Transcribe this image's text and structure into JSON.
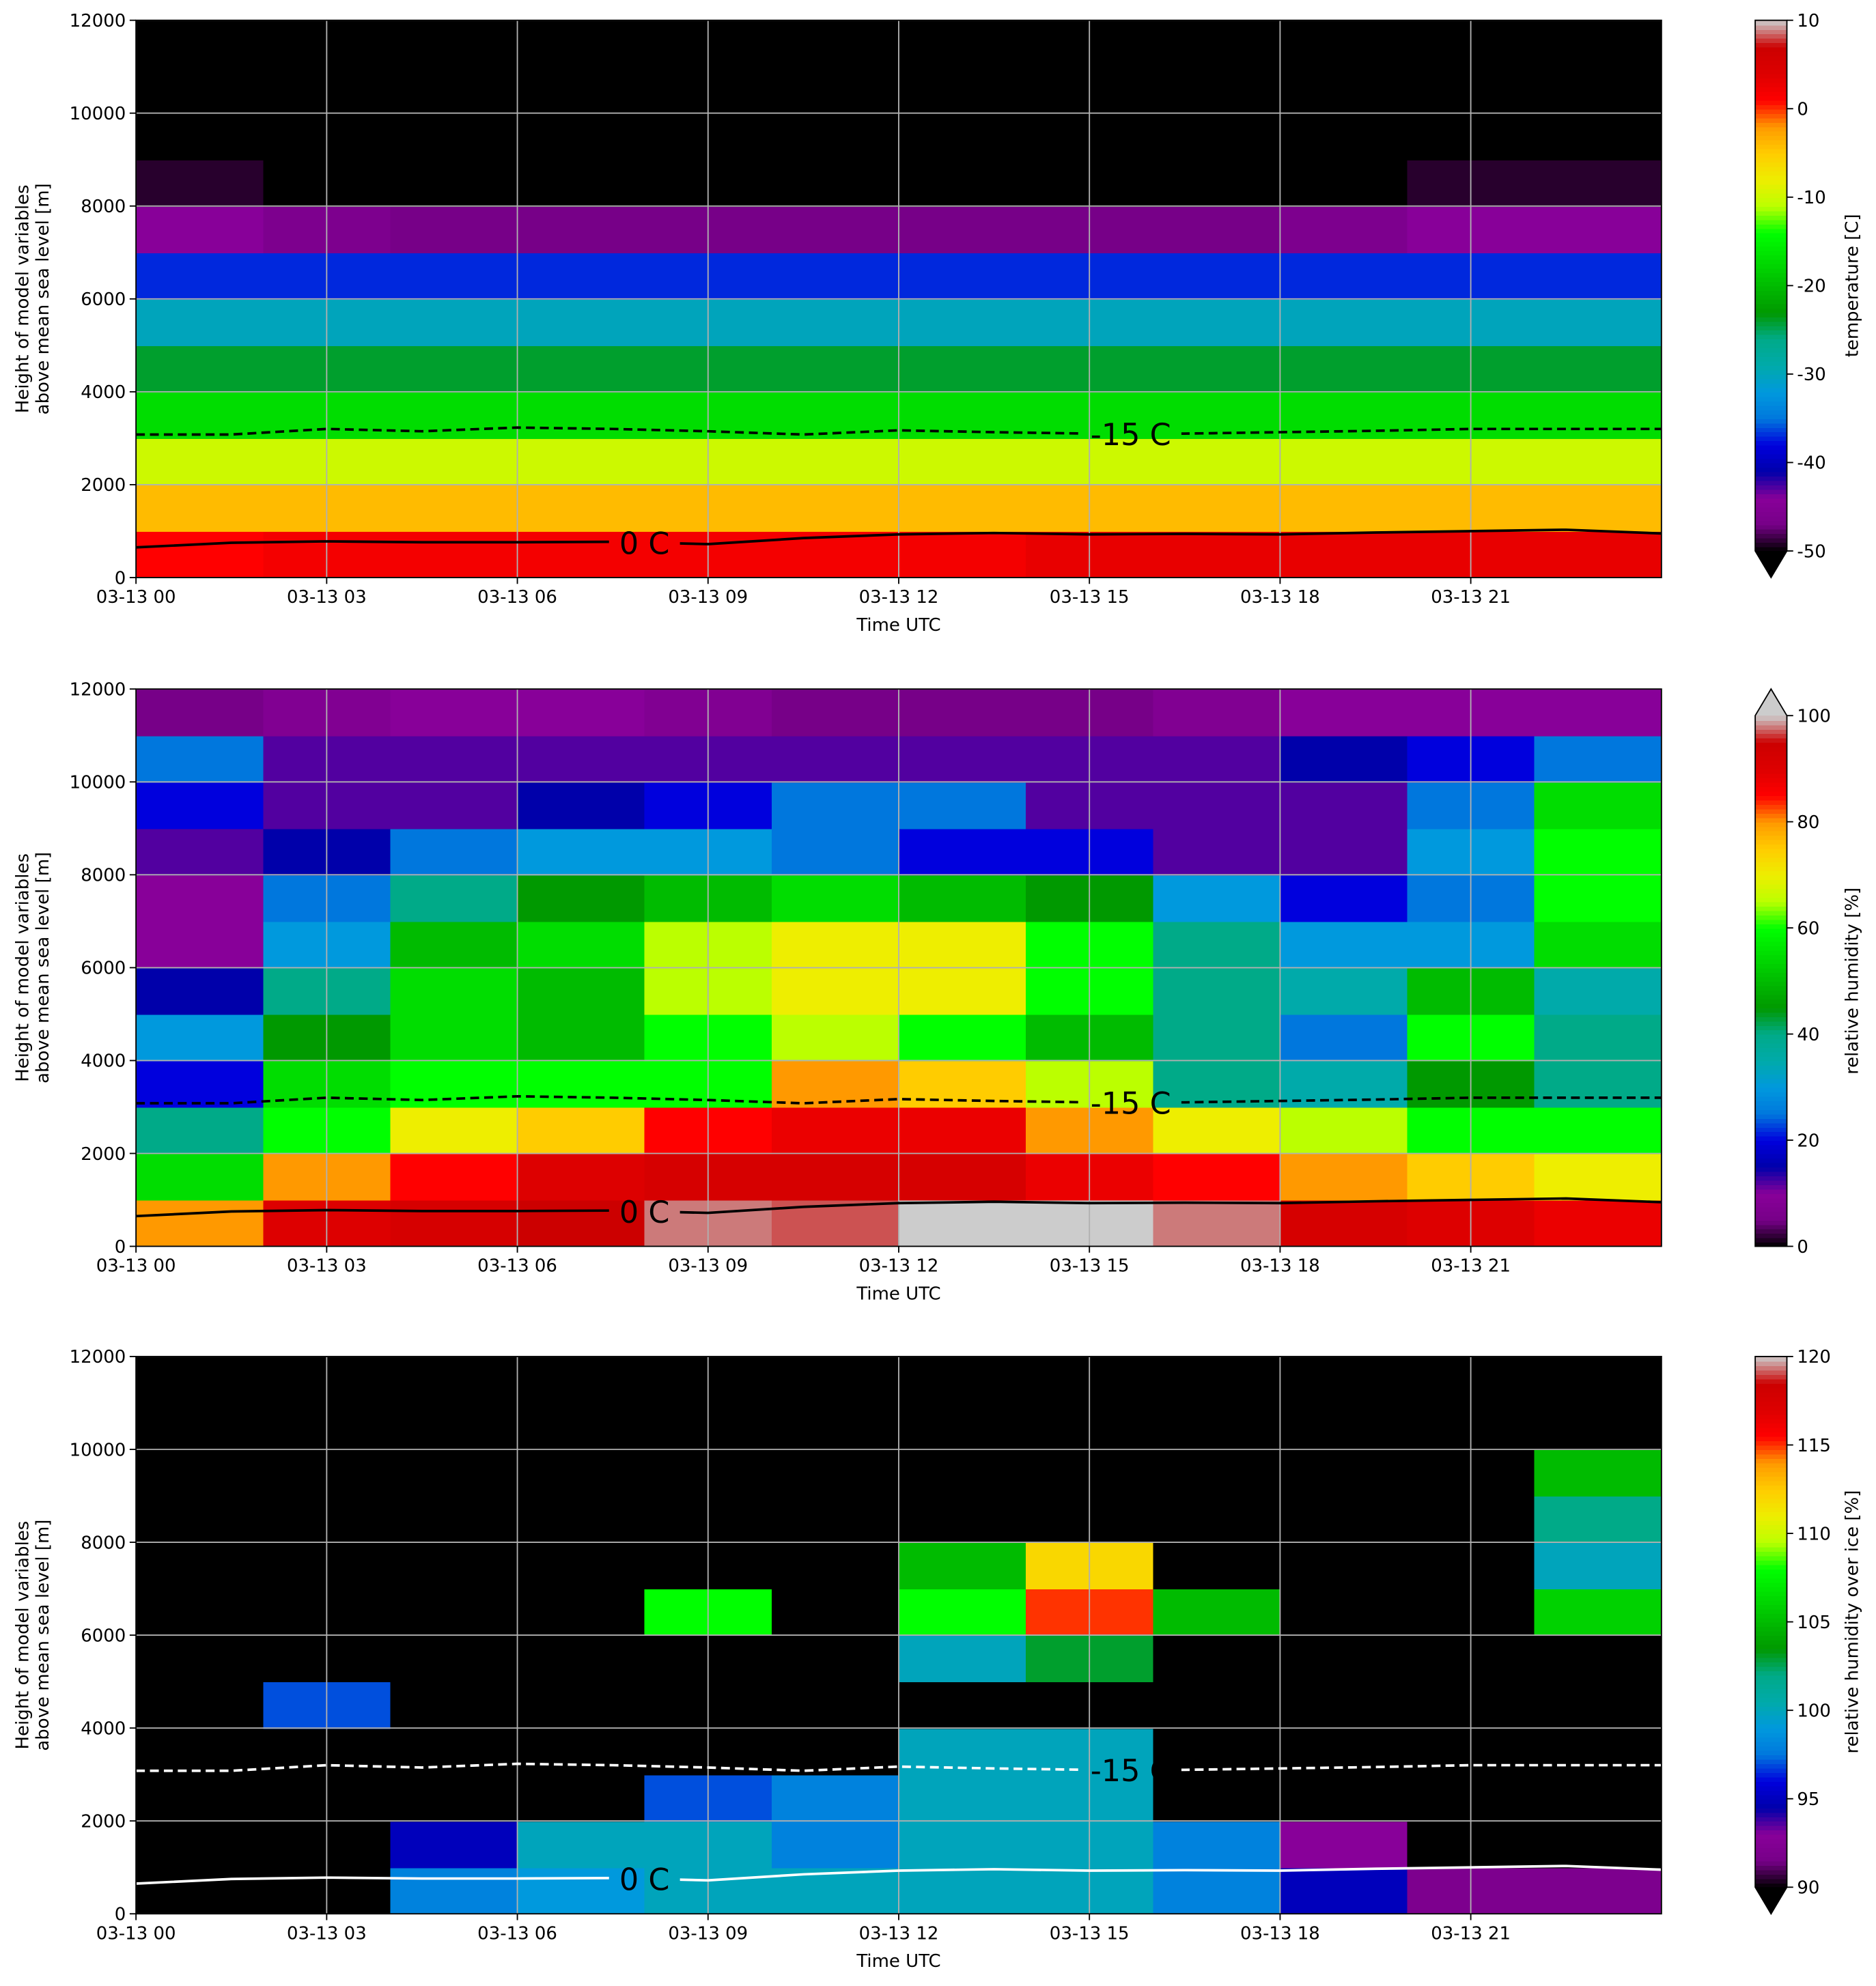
{
  "chart_data": [
    {
      "type": "heatmap",
      "cmap": "nipy_spectral",
      "xlabel": "Time UTC",
      "ylabel": [
        "Height of model variables",
        "above mean sea level [m]"
      ],
      "colorbar_label": "temperature [C]",
      "clim": [
        -50,
        10
      ],
      "cticks": [
        10,
        0,
        -10,
        -20,
        -30,
        -40,
        -50
      ],
      "extend": "min",
      "xlim": [
        0,
        24
      ],
      "ylim": [
        0,
        12000
      ],
      "xticks": [
        {
          "value": 0,
          "label": "03-13 00"
        },
        {
          "value": 3,
          "label": "03-13 03"
        },
        {
          "value": 6,
          "label": "03-13 06"
        },
        {
          "value": 9,
          "label": "03-13 09"
        },
        {
          "value": 12,
          "label": "03-13 12"
        },
        {
          "value": 15,
          "label": "03-13 15"
        },
        {
          "value": 18,
          "label": "03-13 18"
        },
        {
          "value": 21,
          "label": "03-13 21"
        }
      ],
      "yticks": [
        0,
        2000,
        4000,
        6000,
        8000,
        10000,
        12000
      ],
      "grid": true,
      "x_edges": [
        0,
        2,
        4,
        6,
        8,
        10,
        12,
        14,
        16,
        18,
        20,
        22,
        24
      ],
      "y_edges": [
        0,
        1000,
        2000,
        3000,
        4000,
        5000,
        6000,
        7000,
        8000,
        9000,
        10000,
        11000,
        12000
      ],
      "z": [
        [
          1,
          2,
          2,
          2,
          2,
          2,
          2,
          3,
          3,
          3,
          3,
          3
        ],
        [
          -4,
          -4,
          -4,
          -4,
          -4,
          -4,
          -4,
          -4,
          -4,
          -4,
          -4,
          -4
        ],
        [
          -10,
          -10,
          -10,
          -10,
          -10,
          -10,
          -10,
          -10,
          -10,
          -10,
          -10,
          -10
        ],
        [
          -17,
          -17,
          -17,
          -17,
          -17,
          -17,
          -17,
          -17,
          -17,
          -17,
          -17,
          -17
        ],
        [
          -24,
          -24,
          -24,
          -24,
          -24,
          -24,
          -24,
          -24,
          -24,
          -24,
          -24,
          -24
        ],
        [
          -30,
          -30,
          -30,
          -30,
          -30,
          -30,
          -30,
          -30,
          -30,
          -30,
          -30,
          -30
        ],
        [
          -37,
          -37,
          -37,
          -37,
          -37,
          -37,
          -37,
          -37,
          -37,
          -37,
          -37,
          -37
        ],
        [
          -44,
          -46,
          -47,
          -47,
          -47,
          -47,
          -47,
          -47,
          -47,
          -46,
          -44,
          -44
        ],
        [
          -49,
          -52,
          -55,
          -55,
          -55,
          -55,
          -55,
          -55,
          -54,
          -50,
          -49,
          -49
        ],
        [
          -57,
          -57,
          -57,
          -57,
          -57,
          -57,
          -57,
          -57,
          -57,
          -57,
          -57,
          -57
        ],
        [
          -57,
          -57,
          -57,
          -57,
          -57,
          -57,
          -57,
          -57,
          -57,
          -57,
          -57,
          -57
        ],
        [
          -57,
          -57,
          -57,
          -57,
          -57,
          -57,
          -57,
          -57,
          -57,
          -57,
          -57,
          -57
        ]
      ],
      "contour_x": [
        0,
        1.5,
        3,
        4.5,
        6,
        7.5,
        9,
        10.5,
        12,
        13.5,
        15,
        16.5,
        18,
        19.5,
        21,
        22.5,
        24
      ],
      "contours": [
        {
          "label": "0 C",
          "color": "black",
          "dashed": false,
          "values": [
            650,
            750,
            780,
            760,
            760,
            770,
            720,
            850,
            930,
            960,
            930,
            940,
            930,
            970,
            1000,
            1030,
            950
          ]
        },
        {
          "label": "-15 C",
          "color": "black",
          "dashed": true,
          "values": [
            3080,
            3080,
            3200,
            3150,
            3230,
            3200,
            3150,
            3080,
            3170,
            3130,
            3100,
            3100,
            3130,
            3160,
            3200,
            3200,
            3200
          ]
        }
      ]
    },
    {
      "type": "heatmap",
      "cmap": "nipy_spectral",
      "xlabel": "Time UTC",
      "ylabel": [
        "Height of model variables",
        "above mean sea level [m]"
      ],
      "colorbar_label": "relative humidity [%]",
      "clim": [
        0,
        100
      ],
      "cticks": [
        0,
        20,
        40,
        60,
        80,
        100
      ],
      "extend": "max",
      "xlim": [
        0,
        24
      ],
      "ylim": [
        0,
        12000
      ],
      "xticks": [
        {
          "value": 0,
          "label": "03-13 00"
        },
        {
          "value": 3,
          "label": "03-13 03"
        },
        {
          "value": 6,
          "label": "03-13 06"
        },
        {
          "value": 9,
          "label": "03-13 09"
        },
        {
          "value": 12,
          "label": "03-13 12"
        },
        {
          "value": 15,
          "label": "03-13 15"
        },
        {
          "value": 18,
          "label": "03-13 18"
        },
        {
          "value": 21,
          "label": "03-13 21"
        }
      ],
      "yticks": [
        0,
        2000,
        4000,
        6000,
        8000,
        10000,
        12000
      ],
      "grid": true,
      "x_edges": [
        0,
        2,
        4,
        6,
        8,
        10,
        12,
        14,
        16,
        18,
        20,
        22,
        24
      ],
      "y_edges": [
        0,
        1000,
        2000,
        3000,
        4000,
        5000,
        6000,
        7000,
        8000,
        9000,
        10000,
        11000,
        12000
      ],
      "z": [
        [
          80,
          90,
          92,
          95,
          98,
          97,
          100,
          100,
          98,
          92,
          90,
          88
        ],
        [
          55,
          80,
          85,
          90,
          92,
          92,
          92,
          88,
          85,
          80,
          75,
          70
        ],
        [
          40,
          60,
          70,
          75,
          85,
          88,
          88,
          80,
          70,
          65,
          60,
          60
        ],
        [
          20,
          55,
          60,
          60,
          60,
          80,
          75,
          65,
          40,
          35,
          45,
          40
        ],
        [
          30,
          45,
          55,
          50,
          60,
          65,
          60,
          50,
          40,
          25,
          60,
          40
        ],
        [
          15,
          40,
          55,
          50,
          65,
          70,
          70,
          60,
          40,
          35,
          50,
          35
        ],
        [
          10,
          30,
          50,
          55,
          65,
          70,
          70,
          60,
          40,
          30,
          30,
          55
        ],
        [
          10,
          25,
          40,
          45,
          50,
          55,
          50,
          45,
          30,
          20,
          25,
          60
        ],
        [
          12,
          15,
          25,
          30,
          30,
          25,
          20,
          20,
          12,
          12,
          30,
          60
        ],
        [
          20,
          12,
          12,
          15,
          20,
          25,
          25,
          12,
          12,
          12,
          25,
          55
        ],
        [
          25,
          12,
          12,
          12,
          12,
          12,
          12,
          12,
          12,
          15,
          20,
          25
        ],
        [
          5,
          8,
          10,
          10,
          8,
          5,
          5,
          5,
          8,
          10,
          10,
          10
        ]
      ],
      "contour_x": [
        0,
        1.5,
        3,
        4.5,
        6,
        7.5,
        9,
        10.5,
        12,
        13.5,
        15,
        16.5,
        18,
        19.5,
        21,
        22.5,
        24
      ],
      "contours": [
        {
          "label": "0 C",
          "color": "black",
          "dashed": false,
          "values": [
            650,
            750,
            780,
            760,
            760,
            770,
            720,
            850,
            930,
            960,
            930,
            940,
            930,
            970,
            1000,
            1030,
            950
          ]
        },
        {
          "label": "-15 C",
          "color": "black",
          "dashed": true,
          "values": [
            3080,
            3080,
            3200,
            3150,
            3230,
            3200,
            3150,
            3080,
            3170,
            3130,
            3100,
            3100,
            3130,
            3160,
            3200,
            3200,
            3200
          ]
        }
      ]
    },
    {
      "type": "heatmap",
      "cmap": "nipy_spectral",
      "xlabel": "Time UTC",
      "ylabel": [
        "Height of model variables",
        "above mean sea level [m]"
      ],
      "colorbar_label": "relative humidity over ice [%]",
      "clim": [
        90,
        120
      ],
      "cticks": [
        90,
        95,
        100,
        105,
        110,
        115,
        120
      ],
      "extend": "min",
      "xlim": [
        0,
        24
      ],
      "ylim": [
        0,
        12000
      ],
      "xticks": [
        {
          "value": 0,
          "label": "03-13 00"
        },
        {
          "value": 3,
          "label": "03-13 03"
        },
        {
          "value": 6,
          "label": "03-13 06"
        },
        {
          "value": 9,
          "label": "03-13 09"
        },
        {
          "value": 12,
          "label": "03-13 12"
        },
        {
          "value": 15,
          "label": "03-13 15"
        },
        {
          "value": 18,
          "label": "03-13 18"
        },
        {
          "value": 21,
          "label": "03-13 21"
        }
      ],
      "yticks": [
        0,
        2000,
        4000,
        6000,
        8000,
        10000,
        12000
      ],
      "grid": true,
      "x_edges": [
        0,
        2,
        4,
        6,
        8,
        10,
        12,
        14,
        16,
        18,
        20,
        22,
        24
      ],
      "y_edges": [
        0,
        1000,
        2000,
        3000,
        4000,
        5000,
        6000,
        7000,
        8000,
        9000,
        10000,
        11000,
        12000
      ],
      "z": [
        [
          85,
          88,
          98,
          99,
          100,
          100,
          100,
          100,
          98,
          95,
          92,
          92
        ],
        [
          85,
          85,
          95,
          100,
          100,
          98,
          100,
          100,
          98,
          93,
          85,
          85
        ],
        [
          85,
          85,
          85,
          85,
          97,
          98,
          100,
          100,
          85,
          85,
          85,
          85
        ],
        [
          85,
          85,
          85,
          85,
          85,
          85,
          100,
          100,
          85,
          85,
          85,
          85
        ],
        [
          85,
          97,
          85,
          85,
          85,
          85,
          85,
          85,
          85,
          85,
          85,
          85
        ],
        [
          85,
          85,
          85,
          85,
          85,
          85,
          100,
          103,
          85,
          85,
          85,
          85
        ],
        [
          85,
          85,
          85,
          85,
          108,
          85,
          108,
          115,
          105,
          85,
          85,
          106
        ],
        [
          85,
          85,
          85,
          85,
          85,
          85,
          105,
          112,
          85,
          85,
          85,
          100
        ],
        [
          85,
          85,
          85,
          85,
          85,
          85,
          85,
          85,
          85,
          85,
          85,
          102
        ],
        [
          85,
          85,
          85,
          85,
          85,
          85,
          85,
          85,
          85,
          85,
          85,
          105
        ],
        [
          85,
          85,
          85,
          85,
          85,
          85,
          85,
          85,
          85,
          85,
          85,
          85
        ],
        [
          85,
          85,
          85,
          85,
          85,
          85,
          85,
          85,
          85,
          85,
          85,
          85
        ]
      ],
      "contour_x": [
        0,
        1.5,
        3,
        4.5,
        6,
        7.5,
        9,
        10.5,
        12,
        13.5,
        15,
        16.5,
        18,
        19.5,
        21,
        22.5,
        24
      ],
      "contours": [
        {
          "label": "0 C",
          "color": "white",
          "dashed": false,
          "values": [
            650,
            750,
            780,
            760,
            760,
            770,
            720,
            850,
            930,
            960,
            930,
            940,
            930,
            970,
            1000,
            1030,
            950
          ]
        },
        {
          "label": "-15 C",
          "color": "white",
          "dashed": true,
          "values": [
            3080,
            3080,
            3200,
            3150,
            3230,
            3200,
            3150,
            3080,
            3170,
            3130,
            3100,
            3100,
            3130,
            3160,
            3200,
            3200,
            3200
          ]
        }
      ]
    }
  ]
}
